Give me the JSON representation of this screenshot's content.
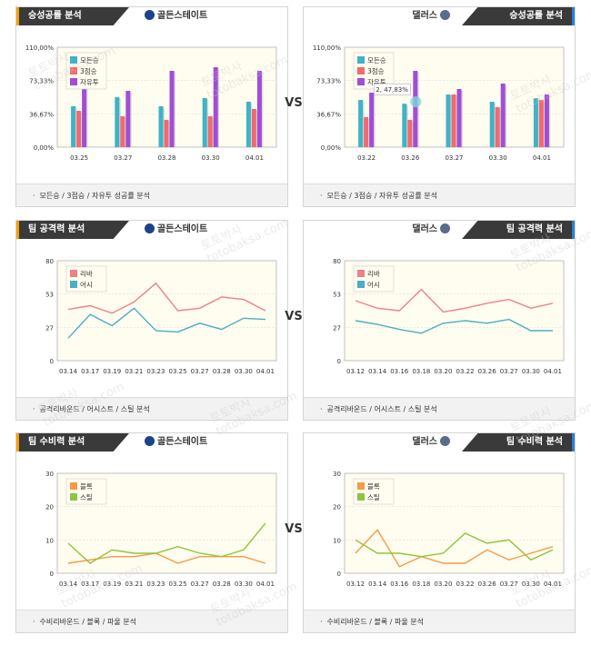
{
  "vs_label": "VS",
  "watermark": {
    "line1": "토토박사",
    "line2": "totobaksa.com"
  },
  "colors": {
    "wins": "#3fb3c7",
    "three_wins": "#f06a70",
    "free_throw": "#a04ed6",
    "rebound": "#f07f86",
    "assist": "#49aec6",
    "block": "#f59a46",
    "steal": "#8cc63a",
    "plot_bg": "#fffdf0",
    "gsw_logo": "#1d428a",
    "dal_logo": "#5b6b8a"
  },
  "sections": [
    {
      "tab_title": "승성공률 분석",
      "footer": "모든승 / 3점승 / 자유투 성공률 분석",
      "left": {
        "team": "골든스테이트",
        "chart_data": {
          "type": "bar",
          "categories": [
            "03.25",
            "03.27",
            "03.28",
            "03.30",
            "04.01"
          ],
          "ylim": [
            0,
            110
          ],
          "y_ticks": [
            "0,00%",
            "36,67%",
            "73,33%",
            "110,00%"
          ],
          "legend": [
            "모든승",
            "3점승",
            "자유투"
          ],
          "series": [
            {
              "name": "모든승",
              "values": [
                45,
                55,
                45,
                54,
                50
              ]
            },
            {
              "name": "3점승",
              "values": [
                40,
                34,
                30,
                34,
                42
              ]
            },
            {
              "name": "자유투",
              "values": [
                72,
                62,
                84,
                88,
                84
              ]
            }
          ]
        }
      },
      "right": {
        "team": "댈러스",
        "tooltip": "2, 47,83%",
        "chart_data": {
          "type": "bar",
          "categories": [
            "03.22",
            "03.26",
            "03.27",
            "03.30",
            "04.01"
          ],
          "ylim": [
            0,
            110
          ],
          "y_ticks": [
            "0,00%",
            "36,67%",
            "73,33%",
            "110,00%"
          ],
          "legend": [
            "모든승",
            "3점승",
            "자유투"
          ],
          "series": [
            {
              "name": "모든승",
              "values": [
                52,
                47.83,
                58,
                50,
                54
              ]
            },
            {
              "name": "3점승",
              "values": [
                33,
                30,
                58,
                44,
                52
              ]
            },
            {
              "name": "자유투",
              "values": [
                60,
                84,
                64,
                70,
                58
              ]
            }
          ]
        }
      }
    },
    {
      "tab_title": "팀 공격력 분석",
      "footer": "공격리바운드 / 어시스트 / 스틸 분석",
      "left": {
        "team": "골든스테이트",
        "chart_data": {
          "type": "line",
          "categories": [
            "03.14",
            "03.17",
            "03.19",
            "03.21",
            "03.23",
            "03.25",
            "03.27",
            "03.28",
            "03.30",
            "04.01"
          ],
          "ylim": [
            0,
            80
          ],
          "y_ticks": [
            "0",
            "27",
            "53",
            "80"
          ],
          "legend": [
            "리바",
            "어시"
          ],
          "series": [
            {
              "name": "리바",
              "values": [
                41,
                44,
                38,
                47,
                62,
                40,
                42,
                51,
                49,
                40
              ]
            },
            {
              "name": "어시",
              "values": [
                18,
                37,
                28,
                42,
                24,
                23,
                30,
                25,
                34,
                33
              ]
            }
          ]
        }
      },
      "right": {
        "team": "댈러스",
        "chart_data": {
          "type": "line",
          "categories": [
            "03.12",
            "03.14",
            "03.16",
            "03.18",
            "03.20",
            "03.22",
            "03.26",
            "03.27",
            "03.30",
            "04.01"
          ],
          "ylim": [
            0,
            80
          ],
          "y_ticks": [
            "0",
            "27",
            "53",
            "80"
          ],
          "legend": [
            "리바",
            "어시"
          ],
          "series": [
            {
              "name": "리바",
              "values": [
                48,
                42,
                40,
                57,
                39,
                42,
                46,
                49,
                42,
                46
              ]
            },
            {
              "name": "어시",
              "values": [
                32,
                29,
                25,
                22,
                30,
                32,
                30,
                33,
                24,
                24
              ]
            }
          ]
        }
      }
    },
    {
      "tab_title": "팀 수비력 분석",
      "footer": "수비리바운드 / 블록 / 파울 분석",
      "left": {
        "team": "골든스테이트",
        "chart_data": {
          "type": "line",
          "categories": [
            "03.14",
            "03.17",
            "03.19",
            "03.21",
            "03.23",
            "03.25",
            "03.27",
            "03.28",
            "03.30",
            "04.01"
          ],
          "ylim": [
            0,
            30
          ],
          "y_ticks": [
            "0",
            "10",
            "20",
            "30"
          ],
          "legend": [
            "블록",
            "스틸"
          ],
          "series": [
            {
              "name": "블록",
              "values": [
                3,
                4,
                5,
                5,
                6,
                3,
                5,
                5,
                5,
                3
              ]
            },
            {
              "name": "스틸",
              "values": [
                9,
                3,
                7,
                6,
                6,
                8,
                6,
                5,
                7,
                15
              ]
            }
          ]
        }
      },
      "right": {
        "team": "댈러스",
        "chart_data": {
          "type": "line",
          "categories": [
            "03.12",
            "03.14",
            "03.16",
            "03.18",
            "03.20",
            "03.22",
            "03.26",
            "03.27",
            "03.30",
            "04.01"
          ],
          "ylim": [
            0,
            30
          ],
          "y_ticks": [
            "0",
            "10",
            "20",
            "30"
          ],
          "legend": [
            "블록",
            "스틸"
          ],
          "series": [
            {
              "name": "블록",
              "values": [
                6,
                13,
                2,
                5,
                3,
                3,
                7,
                4,
                6,
                8
              ]
            },
            {
              "name": "스틸",
              "values": [
                10,
                6,
                6,
                5,
                6,
                12,
                9,
                10,
                4,
                7
              ]
            }
          ]
        }
      }
    }
  ]
}
